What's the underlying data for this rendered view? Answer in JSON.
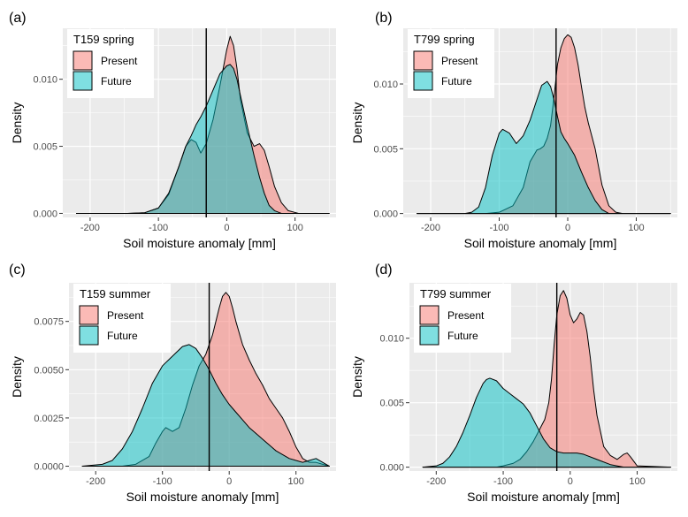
{
  "chart_data": [
    {
      "panel_tag": "(a)",
      "type": "area",
      "title": "",
      "xlabel": "Soil moisture anomaly [mm]",
      "ylabel": "Density",
      "xlim": [
        -240,
        160
      ],
      "ylim": [
        -0.0003,
        0.0138
      ],
      "x_ticks": [
        -200,
        -100,
        0,
        100
      ],
      "x_tick_labels": [
        "-200",
        "-100",
        "0",
        "100"
      ],
      "y_ticks": [
        0,
        0.005,
        0.01
      ],
      "y_tick_labels": [
        "0.000",
        "0.005",
        "0.010"
      ],
      "vline_x": -30,
      "legend": {
        "title": "T159  spring",
        "position": "top-left"
      },
      "series": [
        {
          "name": "Present",
          "fill": "#F8766D",
          "x": [
            -220,
            -145,
            -120,
            -100,
            -85,
            -70,
            -60,
            -52,
            -45,
            -38,
            -30,
            -20,
            -10,
            0,
            5,
            10,
            15,
            20,
            30,
            40,
            48,
            55,
            62,
            70,
            80,
            90,
            105,
            150
          ],
          "y": [
            0,
            0,
            5e-05,
            0.0004,
            0.0014,
            0.0035,
            0.005,
            0.0055,
            0.0053,
            0.0045,
            0.0052,
            0.007,
            0.0095,
            0.0122,
            0.0132,
            0.0125,
            0.0108,
            0.0085,
            0.006,
            0.005,
            0.0052,
            0.0047,
            0.0035,
            0.002,
            0.0008,
            0.0002,
            0,
            0
          ]
        },
        {
          "name": "Future",
          "fill": "#00BFC4",
          "x": [
            -220,
            -145,
            -120,
            -100,
            -85,
            -70,
            -60,
            -52,
            -45,
            -38,
            -30,
            -20,
            -10,
            0,
            5,
            10,
            15,
            20,
            30,
            40,
            48,
            55,
            62,
            70,
            80,
            90,
            105,
            150
          ],
          "y": [
            0,
            0,
            5e-05,
            0.0004,
            0.0015,
            0.0035,
            0.005,
            0.0058,
            0.0066,
            0.0072,
            0.008,
            0.0092,
            0.0104,
            0.011,
            0.0111,
            0.0108,
            0.01,
            0.0088,
            0.0065,
            0.0043,
            0.0027,
            0.0015,
            0.0006,
            0.0002,
            0,
            0,
            0,
            0
          ]
        }
      ]
    },
    {
      "panel_tag": "(b)",
      "type": "area",
      "title": "",
      "xlabel": "Soil moisture anomaly [mm]",
      "ylabel": "Density",
      "xlim": [
        -240,
        160
      ],
      "ylim": [
        -0.0003,
        0.0143
      ],
      "x_ticks": [
        -200,
        -100,
        0,
        100
      ],
      "x_tick_labels": [
        "-200",
        "-100",
        "0",
        "100"
      ],
      "y_ticks": [
        0,
        0.005,
        0.01
      ],
      "y_tick_labels": [
        "0.000",
        "0.005",
        "0.010"
      ],
      "vline_x": -17,
      "legend": {
        "title": "T799  spring",
        "position": "top-left"
      },
      "series": [
        {
          "name": "Present",
          "fill": "#F8766D",
          "x": [
            -220,
            -140,
            -120,
            -100,
            -80,
            -65,
            -55,
            -45,
            -40,
            -35,
            -30,
            -25,
            -20,
            -15,
            -10,
            -5,
            0,
            5,
            10,
            15,
            20,
            25,
            30,
            35,
            40,
            45,
            50,
            60,
            70,
            80,
            150
          ],
          "y": [
            0,
            0,
            0,
            0.0001,
            0.0006,
            0.002,
            0.004,
            0.0049,
            0.005,
            0.0052,
            0.0058,
            0.0068,
            0.009,
            0.0115,
            0.0128,
            0.0135,
            0.0138,
            0.0136,
            0.0128,
            0.0115,
            0.0098,
            0.0082,
            0.007,
            0.006,
            0.005,
            0.0036,
            0.0022,
            0.0006,
            0.0001,
            0,
            0
          ]
        },
        {
          "name": "Future",
          "fill": "#00BFC4",
          "x": [
            -220,
            -150,
            -140,
            -130,
            -120,
            -110,
            -100,
            -95,
            -85,
            -75,
            -65,
            -55,
            -45,
            -38,
            -30,
            -25,
            -20,
            -15,
            -10,
            -5,
            0,
            10,
            20,
            30,
            40,
            50,
            60,
            150
          ],
          "y": [
            0,
            0,
            0.0001,
            0.0005,
            0.002,
            0.0045,
            0.0062,
            0.0065,
            0.0062,
            0.0054,
            0.006,
            0.0072,
            0.0088,
            0.0099,
            0.0102,
            0.0098,
            0.0088,
            0.0075,
            0.0063,
            0.0058,
            0.0054,
            0.0045,
            0.0032,
            0.002,
            0.001,
            0.0003,
            0,
            0
          ]
        }
      ]
    },
    {
      "panel_tag": "(c)",
      "type": "area",
      "title": "",
      "xlabel": "Soil moisture anomaly [mm]",
      "ylabel": "Density",
      "xlim": [
        -240,
        160
      ],
      "ylim": [
        -0.00025,
        0.0095
      ],
      "x_ticks": [
        -200,
        -100,
        0,
        100
      ],
      "x_tick_labels": [
        "-200",
        "-100",
        "0",
        "100"
      ],
      "y_ticks": [
        0,
        0.0025,
        0.005,
        0.0075
      ],
      "y_tick_labels": [
        "0.0000",
        "0.0025",
        "0.0050",
        "0.0075"
      ],
      "vline_x": -30,
      "legend": {
        "title": "T159  summer",
        "position": "top-left"
      },
      "series": [
        {
          "name": "Present",
          "fill": "#F8766D",
          "x": [
            -220,
            -160,
            -140,
            -120,
            -110,
            -100,
            -95,
            -85,
            -75,
            -65,
            -55,
            -45,
            -35,
            -25,
            -15,
            -10,
            -5,
            0,
            5,
            10,
            20,
            30,
            40,
            50,
            60,
            70,
            80,
            90,
            100,
            110,
            120,
            130,
            140,
            150
          ],
          "y": [
            0,
            0,
            0.0001,
            0.0005,
            0.0012,
            0.0018,
            0.002,
            0.0018,
            0.002,
            0.003,
            0.0042,
            0.0052,
            0.0058,
            0.0068,
            0.0082,
            0.0088,
            0.009,
            0.0088,
            0.0082,
            0.0075,
            0.0063,
            0.0055,
            0.0048,
            0.0042,
            0.0035,
            0.003,
            0.0025,
            0.0018,
            0.001,
            0.0004,
            0.0002,
            0.0002,
            0.0001,
            0
          ]
        },
        {
          "name": "Future",
          "fill": "#00BFC4",
          "x": [
            -220,
            -190,
            -175,
            -160,
            -145,
            -130,
            -115,
            -100,
            -85,
            -70,
            -60,
            -50,
            -40,
            -30,
            -20,
            -10,
            0,
            10,
            20,
            30,
            40,
            50,
            60,
            70,
            80,
            90,
            100,
            110,
            120,
            130,
            140,
            150
          ],
          "y": [
            0,
            0.0001,
            0.0003,
            0.0009,
            0.0018,
            0.003,
            0.0043,
            0.0052,
            0.0057,
            0.0062,
            0.0063,
            0.0061,
            0.0056,
            0.005,
            0.0043,
            0.0037,
            0.0032,
            0.0028,
            0.0024,
            0.002,
            0.0017,
            0.0014,
            0.0011,
            0.0008,
            0.0006,
            0.0004,
            0.0003,
            0.0002,
            0.0003,
            0.0004,
            0.0002,
            0
          ]
        }
      ]
    },
    {
      "panel_tag": "(d)",
      "type": "area",
      "title": "",
      "xlabel": "Soil moisture anomaly [mm]",
      "ylabel": "Density",
      "xlim": [
        -240,
        160
      ],
      "ylim": [
        -0.0003,
        0.0143
      ],
      "x_ticks": [
        -200,
        -100,
        0,
        100
      ],
      "x_tick_labels": [
        "-200",
        "-100",
        "0",
        "100"
      ],
      "y_ticks": [
        0,
        0.005,
        0.01
      ],
      "y_tick_labels": [
        "0.000",
        "0.005",
        "0.010"
      ],
      "vline_x": -20,
      "legend": {
        "title": "T799  summer",
        "position": "top-left"
      },
      "series": [
        {
          "name": "Present",
          "fill": "#F8766D",
          "x": [
            -220,
            -110,
            -100,
            -85,
            -75,
            -65,
            -55,
            -45,
            -38,
            -32,
            -28,
            -24,
            -20,
            -15,
            -10,
            -5,
            0,
            5,
            10,
            15,
            20,
            25,
            30,
            35,
            40,
            50,
            60,
            70,
            80,
            85,
            90,
            100,
            150
          ],
          "y": [
            0,
            0,
            0.0001,
            0.0003,
            0.0006,
            0.0012,
            0.002,
            0.003,
            0.0037,
            0.005,
            0.0068,
            0.0095,
            0.0118,
            0.0133,
            0.0137,
            0.0131,
            0.0118,
            0.0112,
            0.0115,
            0.012,
            0.0118,
            0.0105,
            0.0085,
            0.006,
            0.004,
            0.0016,
            0.0009,
            0.0006,
            0.001,
            0.0011,
            0.0008,
            0.0001,
            0
          ]
        },
        {
          "name": "Future",
          "fill": "#00BFC4",
          "x": [
            -220,
            -200,
            -190,
            -180,
            -170,
            -160,
            -150,
            -140,
            -130,
            -125,
            -120,
            -110,
            -100,
            -90,
            -80,
            -70,
            -60,
            -50,
            -40,
            -30,
            -20,
            -10,
            0,
            10,
            20,
            40,
            60,
            80,
            100,
            150
          ],
          "y": [
            0,
            0.0001,
            0.0003,
            0.0008,
            0.0016,
            0.0027,
            0.004,
            0.0054,
            0.0065,
            0.0068,
            0.0069,
            0.0067,
            0.0061,
            0.0057,
            0.0053,
            0.0049,
            0.0042,
            0.0032,
            0.0022,
            0.0015,
            0.0012,
            0.0011,
            0.0011,
            0.0011,
            0.001,
            0.0006,
            0.0002,
            0,
            0,
            0
          ]
        }
      ]
    }
  ]
}
